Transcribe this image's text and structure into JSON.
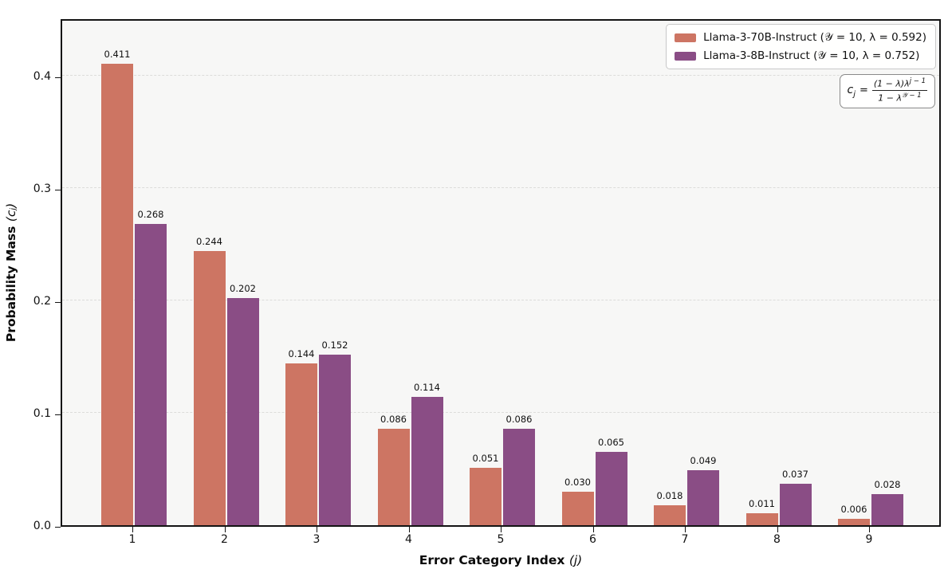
{
  "chart_data": {
    "type": "bar",
    "xlabel_main": "Error Category Index",
    "xlabel_math": "(j)",
    "ylabel_main": "Probability Mass",
    "ylabel_math": "(cⱼ)",
    "categories": [
      "1",
      "2",
      "3",
      "4",
      "5",
      "6",
      "7",
      "8",
      "9"
    ],
    "series": [
      {
        "name": "Llama-3-70B-Instruct (𝒴 = 10, λ = 0.592)",
        "color": "#cd7563",
        "values": [
          0.411,
          0.244,
          0.144,
          0.086,
          0.051,
          0.03,
          0.018,
          0.011,
          0.006
        ]
      },
      {
        "name": "Llama-3-8B-Instruct (𝒴 = 10, λ = 0.752)",
        "color": "#8a4d85",
        "values": [
          0.268,
          0.202,
          0.152,
          0.114,
          0.086,
          0.065,
          0.049,
          0.037,
          0.028
        ]
      }
    ],
    "y_ticks": [
      "0.0",
      "0.1",
      "0.2",
      "0.3",
      "0.4"
    ],
    "y_tick_values": [
      0.0,
      0.1,
      0.2,
      0.3,
      0.4
    ],
    "ylim": [
      0,
      0.452
    ],
    "grid": "horizontal-dashed",
    "legend_position": "upper-right",
    "bar_labels": true,
    "bar_label_decimals": 3
  },
  "formula": {
    "lhs_var": "c",
    "lhs_sub": "j",
    "eq": "=",
    "num_base": "(1 − λ)λ",
    "num_exp": "j − 1",
    "den_base": "1 − λ",
    "den_exp": "𝒴 − 1"
  }
}
